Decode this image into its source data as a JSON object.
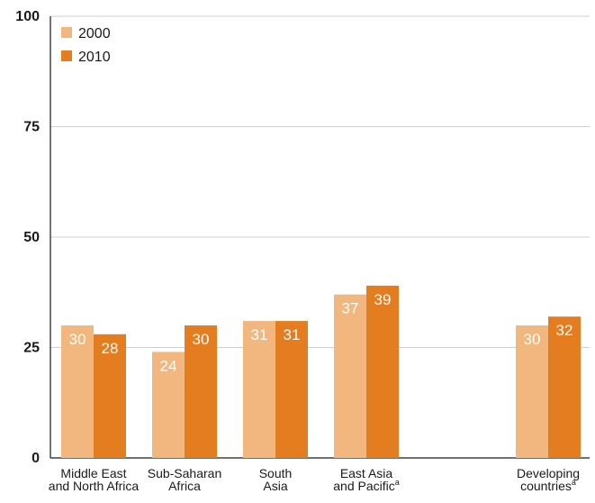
{
  "chart_data": {
    "type": "bar",
    "categories": [
      [
        "Middle East",
        "and North Africa"
      ],
      [
        "Sub-Saharan",
        "Africa"
      ],
      [
        "South",
        "Asia"
      ],
      [
        "East Asia",
        "and Pacific"
      ],
      [
        "",
        ""
      ],
      [
        "Developing",
        "countries"
      ]
    ],
    "category_superscripts": [
      "",
      "",
      "",
      "a",
      "",
      "a"
    ],
    "series": [
      {
        "name": "2000",
        "color": "#f2b77f",
        "values": [
          30,
          24,
          31,
          37,
          null,
          30
        ]
      },
      {
        "name": "2010",
        "color": "#e47d20",
        "values": [
          28,
          30,
          31,
          39,
          null,
          32
        ]
      }
    ],
    "data_labels": true,
    "ylim": [
      0,
      100
    ],
    "yticks": [
      "0",
      "25",
      "50",
      "75",
      "100"
    ],
    "grid": true,
    "legend": "top-left",
    "colors": {
      "grid": "#cfcfcf",
      "axis": "#1a1a1a",
      "label": "#ffffff",
      "text": "#1a1a1a"
    },
    "title": "",
    "xlabel": "",
    "ylabel": ""
  }
}
